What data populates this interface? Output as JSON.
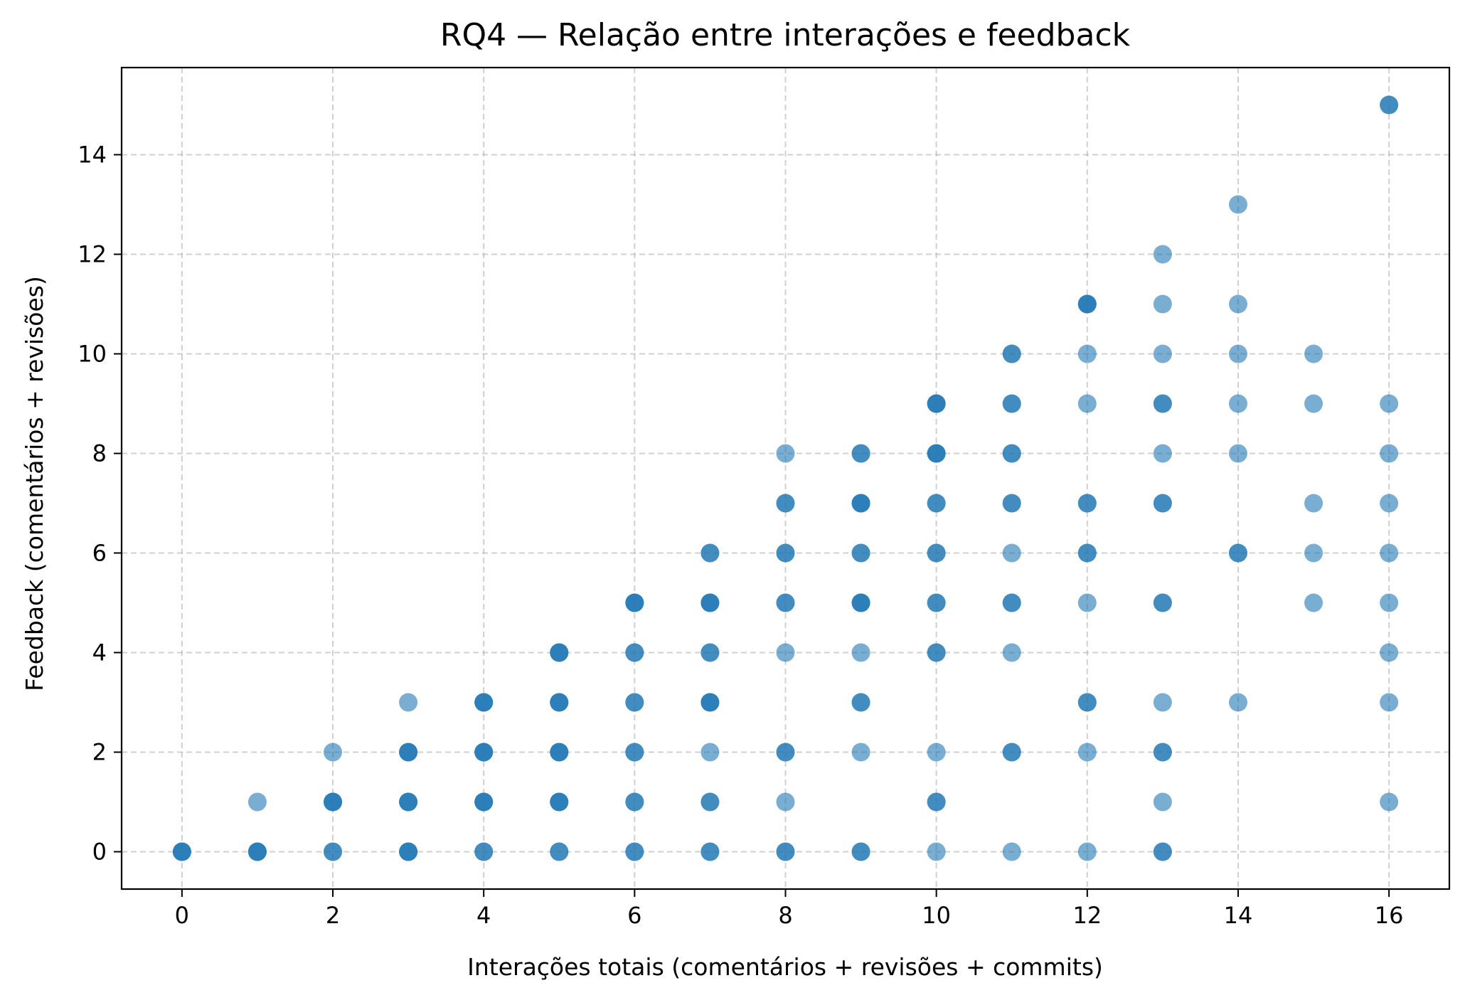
{
  "chart_data": {
    "type": "scatter",
    "title": "RQ4 — Relação entre interações e feedback",
    "xlabel": "Interações totais (comentários + revisões + commits)",
    "ylabel": "Feedback (comentários + revisões)",
    "xlim": [
      -0.8,
      16.8
    ],
    "ylim": [
      -0.75,
      15.75
    ],
    "xticks": [
      0,
      2,
      4,
      6,
      8,
      10,
      12,
      14,
      16
    ],
    "yticks": [
      0,
      2,
      4,
      6,
      8,
      10,
      12,
      14
    ],
    "xtick_labels": [
      "0",
      "2",
      "4",
      "6",
      "8",
      "10",
      "12",
      "14",
      "16"
    ],
    "ytick_labels": [
      "0",
      "2",
      "4",
      "6",
      "8",
      "10",
      "12",
      "14"
    ],
    "grid": true,
    "color": "#1f77b4",
    "marker_alpha": 0.6,
    "points": [
      {
        "x": 0,
        "y": 0,
        "n": 3
      },
      {
        "x": 1,
        "y": 0,
        "n": 3
      },
      {
        "x": 1,
        "y": 1,
        "n": 1
      },
      {
        "x": 2,
        "y": 0,
        "n": 2
      },
      {
        "x": 2,
        "y": 1,
        "n": 3
      },
      {
        "x": 2,
        "y": 2,
        "n": 1
      },
      {
        "x": 3,
        "y": 0,
        "n": 3
      },
      {
        "x": 3,
        "y": 1,
        "n": 3
      },
      {
        "x": 3,
        "y": 2,
        "n": 3
      },
      {
        "x": 3,
        "y": 3,
        "n": 1
      },
      {
        "x": 4,
        "y": 0,
        "n": 2
      },
      {
        "x": 4,
        "y": 1,
        "n": 3
      },
      {
        "x": 4,
        "y": 2,
        "n": 3
      },
      {
        "x": 4,
        "y": 3,
        "n": 3
      },
      {
        "x": 5,
        "y": 0,
        "n": 2
      },
      {
        "x": 5,
        "y": 1,
        "n": 3
      },
      {
        "x": 5,
        "y": 2,
        "n": 3
      },
      {
        "x": 5,
        "y": 3,
        "n": 3
      },
      {
        "x": 5,
        "y": 4,
        "n": 3
      },
      {
        "x": 6,
        "y": 0,
        "n": 2
      },
      {
        "x": 6,
        "y": 1,
        "n": 2
      },
      {
        "x": 6,
        "y": 2,
        "n": 2
      },
      {
        "x": 6,
        "y": 3,
        "n": 2
      },
      {
        "x": 6,
        "y": 4,
        "n": 2
      },
      {
        "x": 6,
        "y": 5,
        "n": 3
      },
      {
        "x": 7,
        "y": 0,
        "n": 2
      },
      {
        "x": 7,
        "y": 1,
        "n": 2
      },
      {
        "x": 7,
        "y": 2,
        "n": 1
      },
      {
        "x": 7,
        "y": 3,
        "n": 3
      },
      {
        "x": 7,
        "y": 4,
        "n": 2
      },
      {
        "x": 7,
        "y": 5,
        "n": 3
      },
      {
        "x": 7,
        "y": 6,
        "n": 2
      },
      {
        "x": 8,
        "y": 0,
        "n": 2
      },
      {
        "x": 8,
        "y": 1,
        "n": 1
      },
      {
        "x": 8,
        "y": 2,
        "n": 2
      },
      {
        "x": 8,
        "y": 4,
        "n": 1
      },
      {
        "x": 8,
        "y": 5,
        "n": 2
      },
      {
        "x": 8,
        "y": 6,
        "n": 2
      },
      {
        "x": 8,
        "y": 7,
        "n": 2
      },
      {
        "x": 8,
        "y": 8,
        "n": 1
      },
      {
        "x": 9,
        "y": 0,
        "n": 2
      },
      {
        "x": 9,
        "y": 2,
        "n": 1
      },
      {
        "x": 9,
        "y": 3,
        "n": 2
      },
      {
        "x": 9,
        "y": 4,
        "n": 1
      },
      {
        "x": 9,
        "y": 5,
        "n": 3
      },
      {
        "x": 9,
        "y": 6,
        "n": 2
      },
      {
        "x": 9,
        "y": 7,
        "n": 3
      },
      {
        "x": 9,
        "y": 8,
        "n": 2
      },
      {
        "x": 10,
        "y": 0,
        "n": 1
      },
      {
        "x": 10,
        "y": 1,
        "n": 2
      },
      {
        "x": 10,
        "y": 2,
        "n": 1
      },
      {
        "x": 10,
        "y": 4,
        "n": 2
      },
      {
        "x": 10,
        "y": 5,
        "n": 2
      },
      {
        "x": 10,
        "y": 6,
        "n": 2
      },
      {
        "x": 10,
        "y": 7,
        "n": 2
      },
      {
        "x": 10,
        "y": 8,
        "n": 3
      },
      {
        "x": 10,
        "y": 9,
        "n": 3
      },
      {
        "x": 11,
        "y": 0,
        "n": 1
      },
      {
        "x": 11,
        "y": 2,
        "n": 2
      },
      {
        "x": 11,
        "y": 4,
        "n": 1
      },
      {
        "x": 11,
        "y": 5,
        "n": 2
      },
      {
        "x": 11,
        "y": 6,
        "n": 1
      },
      {
        "x": 11,
        "y": 7,
        "n": 2
      },
      {
        "x": 11,
        "y": 8,
        "n": 2
      },
      {
        "x": 11,
        "y": 9,
        "n": 2
      },
      {
        "x": 11,
        "y": 10,
        "n": 2
      },
      {
        "x": 12,
        "y": 0,
        "n": 1
      },
      {
        "x": 12,
        "y": 2,
        "n": 1
      },
      {
        "x": 12,
        "y": 3,
        "n": 2
      },
      {
        "x": 12,
        "y": 5,
        "n": 1
      },
      {
        "x": 12,
        "y": 6,
        "n": 2
      },
      {
        "x": 12,
        "y": 7,
        "n": 2
      },
      {
        "x": 12,
        "y": 9,
        "n": 1
      },
      {
        "x": 12,
        "y": 10,
        "n": 1
      },
      {
        "x": 12,
        "y": 11,
        "n": 3
      },
      {
        "x": 13,
        "y": 0,
        "n": 2
      },
      {
        "x": 13,
        "y": 1,
        "n": 1
      },
      {
        "x": 13,
        "y": 2,
        "n": 2
      },
      {
        "x": 13,
        "y": 3,
        "n": 1
      },
      {
        "x": 13,
        "y": 5,
        "n": 2
      },
      {
        "x": 13,
        "y": 7,
        "n": 2
      },
      {
        "x": 13,
        "y": 8,
        "n": 1
      },
      {
        "x": 13,
        "y": 9,
        "n": 2
      },
      {
        "x": 13,
        "y": 10,
        "n": 1
      },
      {
        "x": 13,
        "y": 11,
        "n": 1
      },
      {
        "x": 13,
        "y": 12,
        "n": 1
      },
      {
        "x": 14,
        "y": 3,
        "n": 1
      },
      {
        "x": 14,
        "y": 6,
        "n": 2
      },
      {
        "x": 14,
        "y": 8,
        "n": 1
      },
      {
        "x": 14,
        "y": 9,
        "n": 1
      },
      {
        "x": 14,
        "y": 10,
        "n": 1
      },
      {
        "x": 14,
        "y": 11,
        "n": 1
      },
      {
        "x": 14,
        "y": 13,
        "n": 1
      },
      {
        "x": 15,
        "y": 5,
        "n": 1
      },
      {
        "x": 15,
        "y": 6,
        "n": 1
      },
      {
        "x": 15,
        "y": 7,
        "n": 1
      },
      {
        "x": 15,
        "y": 9,
        "n": 1
      },
      {
        "x": 15,
        "y": 10,
        "n": 1
      },
      {
        "x": 16,
        "y": 1,
        "n": 1
      },
      {
        "x": 16,
        "y": 3,
        "n": 1
      },
      {
        "x": 16,
        "y": 4,
        "n": 1
      },
      {
        "x": 16,
        "y": 5,
        "n": 1
      },
      {
        "x": 16,
        "y": 6,
        "n": 1
      },
      {
        "x": 16,
        "y": 7,
        "n": 1
      },
      {
        "x": 16,
        "y": 8,
        "n": 1
      },
      {
        "x": 16,
        "y": 9,
        "n": 1
      },
      {
        "x": 16,
        "y": 15,
        "n": 2
      }
    ]
  }
}
